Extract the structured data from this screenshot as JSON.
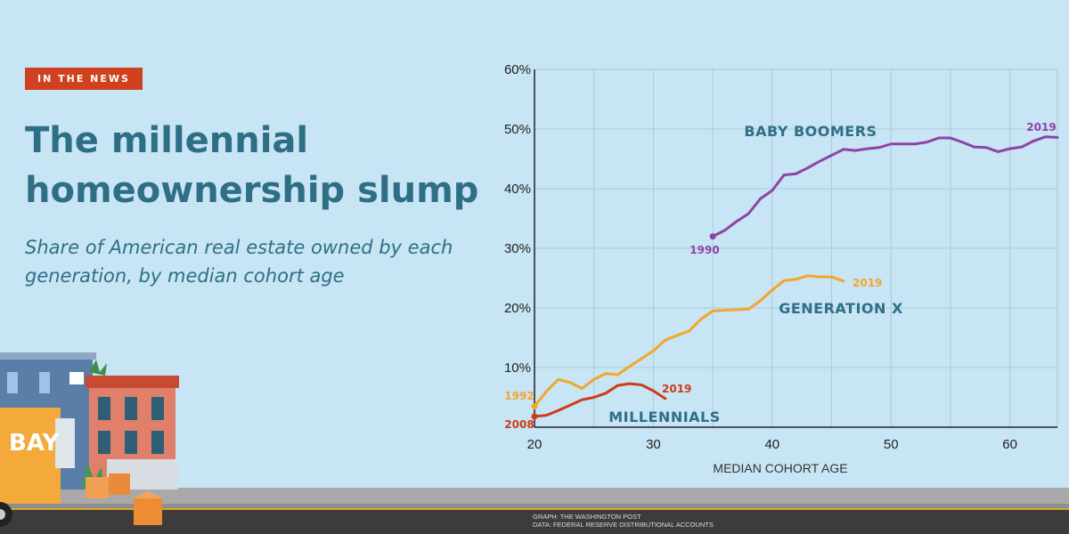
{
  "badge": "IN THE NEWS",
  "headline": "The millennial homeownership slump",
  "subhead": "Share of American real estate owned by each generation, by median cohort age",
  "credits": {
    "graph": "GRAPH: THE WASHINGTON POST",
    "data": "DATA: FEDERAL RESERVE DISTRIBUTIONAL ACCOUNTS"
  },
  "truck_sign": "BAY",
  "colors": {
    "background": "#c7e5f4",
    "accent_badge": "#d0421f",
    "title": "#2f6f86",
    "grid": "#aec9d8",
    "baby_boomers": "#8e44a6",
    "generation_x": "#f2a72b",
    "millennials": "#d03b17"
  },
  "chart_data": {
    "type": "line",
    "title": "",
    "xlabel": "MEDIAN COHORT AGE",
    "ylabel": "",
    "xlim": [
      20,
      64
    ],
    "ylim": [
      0,
      60
    ],
    "x_ticks": [
      20,
      30,
      40,
      50,
      60
    ],
    "y_ticks": [
      10,
      20,
      30,
      40,
      50,
      60
    ],
    "y_tick_suffix": "%",
    "series": [
      {
        "name": "BABY BOOMERS",
        "key": "baby_boomers",
        "start_label": "1990",
        "end_label": "2019",
        "x": [
          35,
          36,
          37,
          38,
          39,
          40,
          41,
          42,
          43,
          44,
          45,
          46,
          47,
          48,
          49,
          50,
          51,
          52,
          53,
          54,
          55,
          56,
          57,
          58,
          59,
          60,
          61,
          62,
          63,
          64
        ],
        "y": [
          32,
          33,
          34.5,
          35.8,
          38.3,
          39.7,
          42.3,
          42.5,
          43.5,
          44.6,
          45.6,
          46.6,
          46.4,
          46.7,
          46.9,
          47.5,
          47.5,
          47.5,
          47.8,
          48.5,
          48.5,
          47.8,
          47,
          46.9,
          46.2,
          46.7,
          47,
          48,
          48.7,
          48.6
        ]
      },
      {
        "name": "GENERATION X",
        "key": "generation_x",
        "start_label": "1992",
        "end_label": "2019",
        "x": [
          20,
          21,
          22,
          23,
          24,
          25,
          26,
          27,
          28,
          29,
          30,
          31,
          32,
          33,
          34,
          35,
          36,
          37,
          38,
          39,
          40,
          41,
          42,
          43,
          44,
          45,
          46
        ],
        "y": [
          3.5,
          6,
          8,
          7.5,
          6.5,
          8,
          9,
          8.8,
          10.2,
          11.5,
          12.8,
          14.6,
          15.4,
          16.1,
          18.1,
          19.5,
          19.6,
          19.7,
          19.8,
          21.2,
          23,
          24.6,
          24.8,
          25.4,
          25.2,
          25.2,
          24.5
        ]
      },
      {
        "name": "MILLENNIALS",
        "key": "millennials",
        "start_label": "2008",
        "end_label": "2019",
        "x": [
          20,
          21,
          22,
          23,
          24,
          25,
          26,
          27,
          28,
          29,
          30,
          31
        ],
        "y": [
          1.8,
          2,
          2.8,
          3.7,
          4.6,
          5,
          5.7,
          7,
          7.3,
          7.1,
          6.1,
          4.8
        ]
      }
    ]
  }
}
